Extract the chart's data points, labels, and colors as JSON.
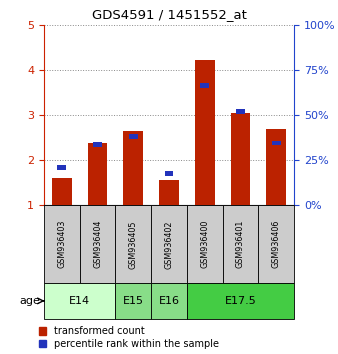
{
  "title": "GDS4591 / 1451552_at",
  "samples": [
    "GSM936403",
    "GSM936404",
    "GSM936405",
    "GSM936402",
    "GSM936400",
    "GSM936401",
    "GSM936406"
  ],
  "transformed_count": [
    1.6,
    2.38,
    2.65,
    1.55,
    4.22,
    3.05,
    2.7
  ],
  "percentile_rank": [
    1.84,
    2.35,
    2.52,
    1.7,
    3.65,
    3.08,
    2.38
  ],
  "age_groups": [
    {
      "label": "E14",
      "indices": [
        0,
        1
      ],
      "color": "#ccffcc"
    },
    {
      "label": "E15",
      "indices": [
        2
      ],
      "color": "#88dd88"
    },
    {
      "label": "E16",
      "indices": [
        3
      ],
      "color": "#88dd88"
    },
    {
      "label": "E17.5",
      "indices": [
        4,
        5,
        6
      ],
      "color": "#44cc44"
    }
  ],
  "ylim_left": [
    1,
    5
  ],
  "ylim_right": [
    0,
    100
  ],
  "yticks_left": [
    1,
    2,
    3,
    4,
    5
  ],
  "yticks_right": [
    0,
    25,
    50,
    75,
    100
  ],
  "bar_color_red": "#bb2200",
  "bar_color_blue": "#2233bb",
  "left_tick_color": "#cc2200",
  "right_tick_color": "#2244cc",
  "grid_color": "#888888",
  "sample_box_color": "#cccccc",
  "age_label": "age",
  "bar_width": 0.55
}
